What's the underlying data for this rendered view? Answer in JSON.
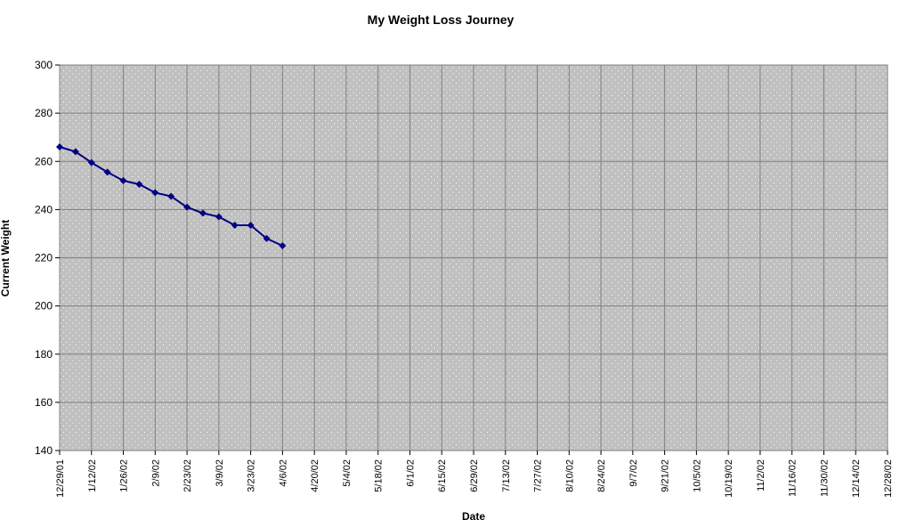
{
  "chart_data": {
    "type": "line",
    "title": "My Weight Loss Journey",
    "xlabel": "Date",
    "ylabel": "Current Weight",
    "ylim": [
      140,
      300
    ],
    "yticks": [
      140,
      160,
      180,
      200,
      220,
      240,
      260,
      280,
      300
    ],
    "xlim": [
      "12/29/01",
      "12/28/02"
    ],
    "xticks": [
      "12/29/01",
      "1/12/02",
      "1/26/02",
      "2/9/02",
      "2/23/02",
      "3/9/02",
      "3/23/02",
      "4/6/02",
      "4/20/02",
      "5/4/02",
      "5/18/02",
      "6/1/02",
      "6/15/02",
      "6/29/02",
      "7/13/02",
      "7/27/02",
      "8/10/02",
      "8/24/02",
      "9/7/02",
      "9/21/02",
      "10/5/02",
      "10/19/02",
      "11/2/02",
      "11/16/02",
      "11/30/02",
      "12/14/02",
      "12/28/02"
    ],
    "grid": true,
    "legend": "none",
    "series": [
      {
        "x": [
          "12/29/01",
          "1/5/02",
          "1/12/02",
          "1/19/02",
          "1/26/02",
          "2/2/02",
          "2/9/02",
          "2/16/02",
          "2/23/02",
          "3/2/02",
          "3/9/02",
          "3/16/02",
          "3/23/02",
          "3/30/02",
          "4/6/02"
        ],
        "values": [
          266,
          264,
          259.5,
          255.5,
          252,
          250.5,
          247,
          245.5,
          241,
          238.5,
          237,
          233.5,
          233.5,
          228,
          225
        ],
        "color": "#000080"
      }
    ],
    "colors": {
      "plot_bg": "#c0c0c0",
      "grid": "#808080",
      "line": "#000080",
      "dots": "#ffffff"
    }
  }
}
